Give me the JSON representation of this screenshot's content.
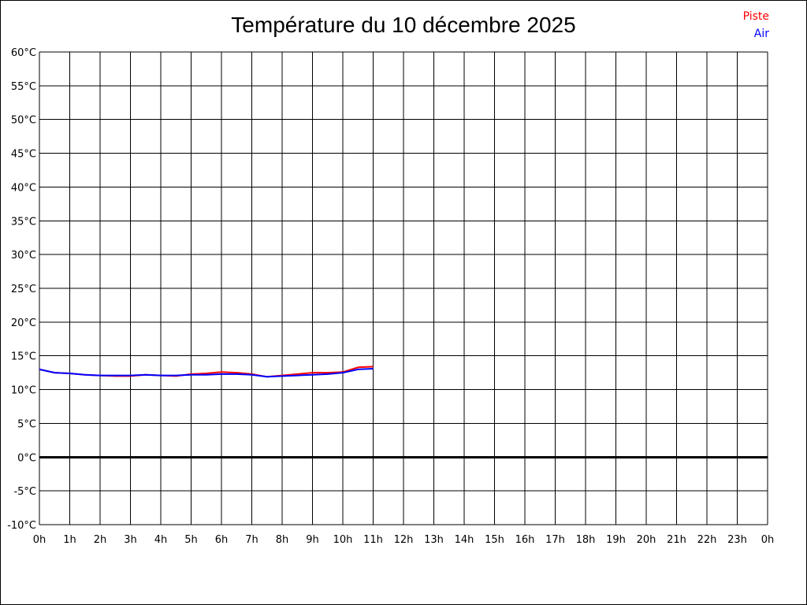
{
  "chart_data": {
    "type": "line",
    "title": "Température du 10 décembre 2025",
    "xlabel": "",
    "ylabel": "",
    "x_ticks": [
      "0h",
      "1h",
      "2h",
      "3h",
      "4h",
      "5h",
      "6h",
      "7h",
      "8h",
      "9h",
      "10h",
      "11h",
      "12h",
      "13h",
      "14h",
      "15h",
      "16h",
      "17h",
      "18h",
      "19h",
      "20h",
      "21h",
      "22h",
      "23h",
      "0h"
    ],
    "y_ticks": [
      "60°C",
      "55°C",
      "50°C",
      "45°C",
      "40°C",
      "35°C",
      "30°C",
      "25°C",
      "20°C",
      "15°C",
      "10°C",
      "5°C",
      "0°C",
      "-5°C",
      "-10°C"
    ],
    "xlim": [
      0,
      24
    ],
    "ylim": [
      -10,
      60
    ],
    "grid": true,
    "legend_position": "top-right",
    "x": [
      0,
      0.5,
      1,
      1.5,
      2,
      2.5,
      3,
      3.5,
      4,
      4.5,
      5,
      5.5,
      6,
      6.5,
      7,
      7.5,
      8,
      8.5,
      9,
      9.5,
      10,
      10.5,
      11
    ],
    "series": [
      {
        "name": "Piste",
        "color": "#ff0000",
        "values": [
          13.0,
          12.5,
          12.4,
          12.2,
          12.1,
          12.0,
          12.0,
          12.2,
          12.1,
          12.0,
          12.3,
          12.4,
          12.6,
          12.5,
          12.3,
          11.9,
          12.1,
          12.3,
          12.5,
          12.5,
          12.6,
          13.3,
          13.4
        ]
      },
      {
        "name": "Air",
        "color": "#0000ff",
        "values": [
          13.0,
          12.5,
          12.4,
          12.2,
          12.1,
          12.1,
          12.1,
          12.2,
          12.1,
          12.1,
          12.2,
          12.2,
          12.3,
          12.3,
          12.2,
          11.9,
          12.0,
          12.1,
          12.2,
          12.3,
          12.5,
          13.0,
          13.1
        ]
      }
    ]
  }
}
